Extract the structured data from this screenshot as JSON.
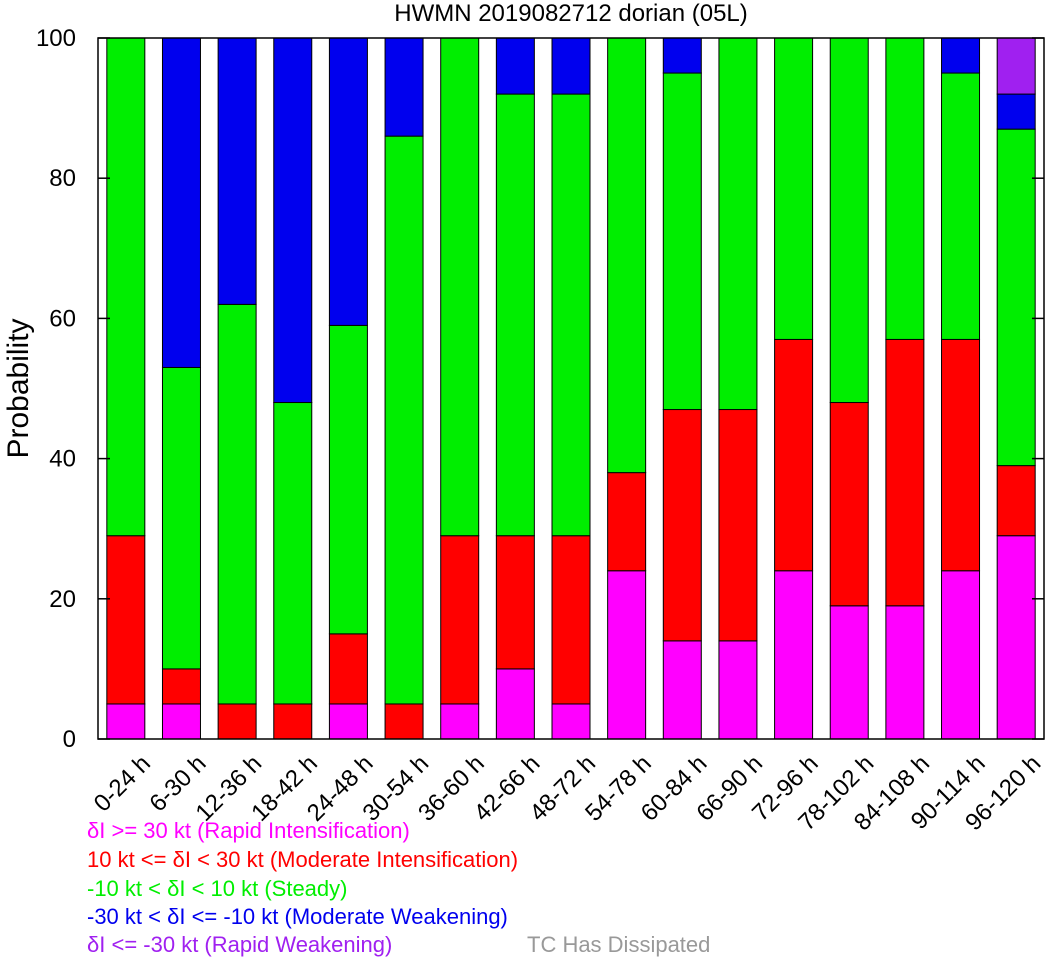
{
  "chart_data": {
    "type": "bar",
    "stacked": true,
    "title": "HWMN 2019082712 dorian (05L)",
    "xlabel": "",
    "ylabel": "Probability",
    "ylim": [
      0,
      100
    ],
    "yticks": [
      0,
      20,
      40,
      60,
      80,
      100
    ],
    "grid": false,
    "categories": [
      "0-24 h",
      "6-30 h",
      "12-36 h",
      "18-42 h",
      "24-48 h",
      "30-54 h",
      "36-60 h",
      "42-66 h",
      "48-72 h",
      "54-78 h",
      "60-84 h",
      "66-90 h",
      "72-96 h",
      "78-102 h",
      "84-108 h",
      "90-114 h",
      "96-120 h"
    ],
    "series": [
      {
        "name": "δI >= 30 kt (Rapid Intensification)",
        "color": "#ff00ff",
        "values": [
          5,
          5,
          0,
          0,
          5,
          0,
          5,
          10,
          5,
          24,
          14,
          14,
          24,
          19,
          19,
          24,
          29
        ]
      },
      {
        "name": "10 kt <= δI < 30 kt (Moderate Intensification)",
        "color": "#ff0000",
        "values": [
          24,
          5,
          5,
          5,
          10,
          5,
          24,
          19,
          24,
          14,
          33,
          33,
          33,
          29,
          38,
          33,
          10
        ]
      },
      {
        "name": "-10 kt < δI < 10 kt (Steady)",
        "color": "#00ee00",
        "values": [
          71,
          43,
          57,
          43,
          44,
          81,
          71,
          63,
          63,
          62,
          48,
          53,
          43,
          52,
          43,
          38,
          48
        ]
      },
      {
        "name": "-30 kt < δI <= -10 kt (Moderate Weakening)",
        "color": "#0000ee",
        "values": [
          0,
          47,
          38,
          52,
          41,
          14,
          0,
          8,
          8,
          0,
          5,
          0,
          0,
          0,
          0,
          5,
          5
        ]
      },
      {
        "name": "δI <= -30 kt (Rapid Weakening)",
        "color": "#a020f0",
        "values": [
          0,
          0,
          0,
          0,
          0,
          0,
          0,
          0,
          0,
          0,
          0,
          0,
          0,
          0,
          0,
          0,
          8
        ]
      },
      {
        "name": "TC Has Dissipated",
        "color": "#999999",
        "values": [
          0,
          0,
          0,
          0,
          0,
          0,
          0,
          0,
          0,
          0,
          0,
          0,
          0,
          0,
          0,
          0,
          0
        ]
      }
    ]
  }
}
